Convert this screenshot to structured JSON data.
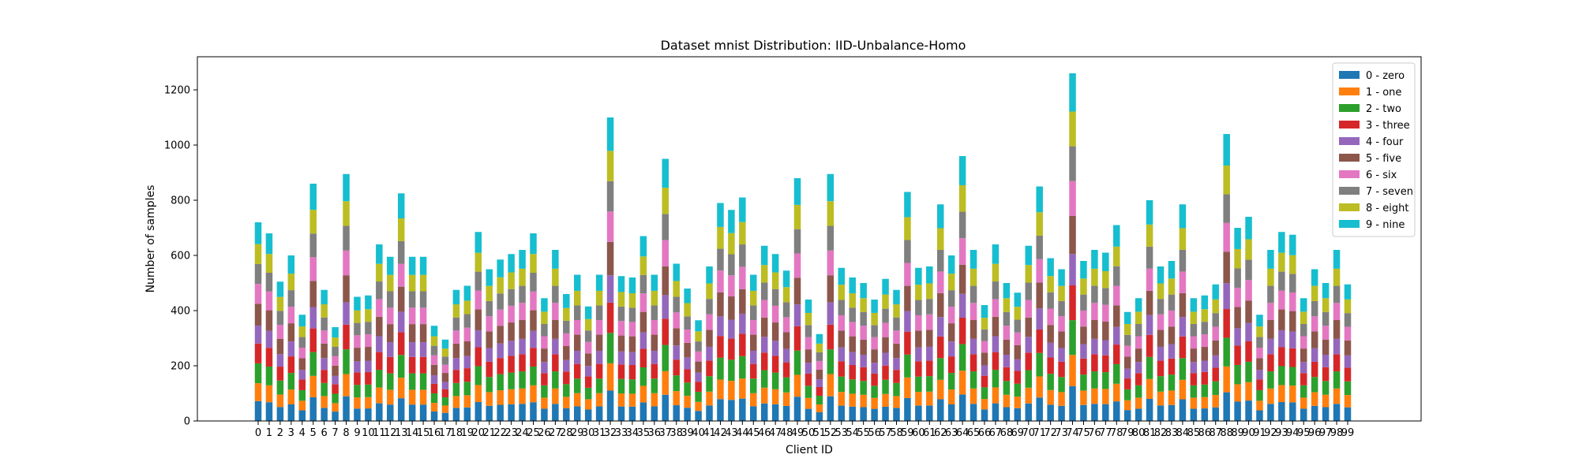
{
  "chart_data": {
    "type": "bar",
    "stacked": true,
    "title": "Dataset mnist Distribution: IID-Unbalance-Homo",
    "xlabel": "Client ID",
    "ylabel": "Number of samples",
    "ylim": [
      0,
      1320
    ],
    "yticks": [
      0,
      200,
      400,
      600,
      800,
      1000,
      1200
    ],
    "grid": false,
    "legend_position": "top-right",
    "categories": [
      "0",
      "1",
      "2",
      "3",
      "4",
      "5",
      "6",
      "7",
      "8",
      "9",
      "10",
      "11",
      "12",
      "13",
      "14",
      "15",
      "16",
      "17",
      "18",
      "19",
      "20",
      "21",
      "22",
      "23",
      "24",
      "25",
      "26",
      "27",
      "28",
      "29",
      "30",
      "31",
      "32",
      "33",
      "34",
      "35",
      "36",
      "37",
      "38",
      "39",
      "40",
      "41",
      "42",
      "43",
      "44",
      "45",
      "46",
      "47",
      "48",
      "49",
      "50",
      "51",
      "52",
      "53",
      "54",
      "55",
      "56",
      "57",
      "58",
      "59",
      "60",
      "61",
      "62",
      "63",
      "64",
      "65",
      "66",
      "67",
      "68",
      "69",
      "70",
      "71",
      "72",
      "73",
      "74",
      "75",
      "76",
      "77",
      "78",
      "79",
      "80",
      "81",
      "82",
      "83",
      "84",
      "85",
      "86",
      "87",
      "88",
      "89",
      "90",
      "91",
      "92",
      "93",
      "94",
      "95",
      "96",
      "97",
      "98",
      "99"
    ],
    "totals": [
      720,
      680,
      505,
      600,
      385,
      860,
      475,
      340,
      895,
      450,
      455,
      640,
      595,
      825,
      595,
      595,
      345,
      295,
      475,
      490,
      685,
      550,
      585,
      605,
      620,
      680,
      445,
      620,
      460,
      530,
      415,
      530,
      1100,
      525,
      520,
      670,
      530,
      950,
      570,
      480,
      365,
      560,
      790,
      765,
      810,
      530,
      635,
      605,
      545,
      880,
      440,
      315,
      895,
      555,
      520,
      500,
      440,
      515,
      475,
      830,
      555,
      560,
      785,
      600,
      960,
      620,
      420,
      640,
      500,
      465,
      635,
      850,
      590,
      550,
      1260,
      580,
      620,
      610,
      710,
      395,
      445,
      800,
      560,
      580,
      785,
      445,
      455,
      495,
      1040,
      700,
      740,
      385,
      620,
      685,
      675,
      445,
      550,
      500,
      620,
      495
    ],
    "series": [
      {
        "name": "0 - zero",
        "color": "#1f77b4",
        "share": 0.1
      },
      {
        "name": "1 - one",
        "color": "#ff7f0e",
        "share": 0.09
      },
      {
        "name": "2 - two",
        "color": "#2ca02c",
        "share": 0.1
      },
      {
        "name": "3 - three",
        "color": "#d62728",
        "share": 0.1
      },
      {
        "name": "4 - four",
        "color": "#9467bd",
        "share": 0.09
      },
      {
        "name": "5 - five",
        "color": "#8c564b",
        "share": 0.11
      },
      {
        "name": "6 - six",
        "color": "#e377c2",
        "share": 0.1
      },
      {
        "name": "7 - seven",
        "color": "#7f7f7f",
        "share": 0.1
      },
      {
        "name": "8 - eight",
        "color": "#bcbd22",
        "share": 0.1
      },
      {
        "name": "9 - nine",
        "color": "#17becf",
        "share": 0.11
      }
    ]
  }
}
